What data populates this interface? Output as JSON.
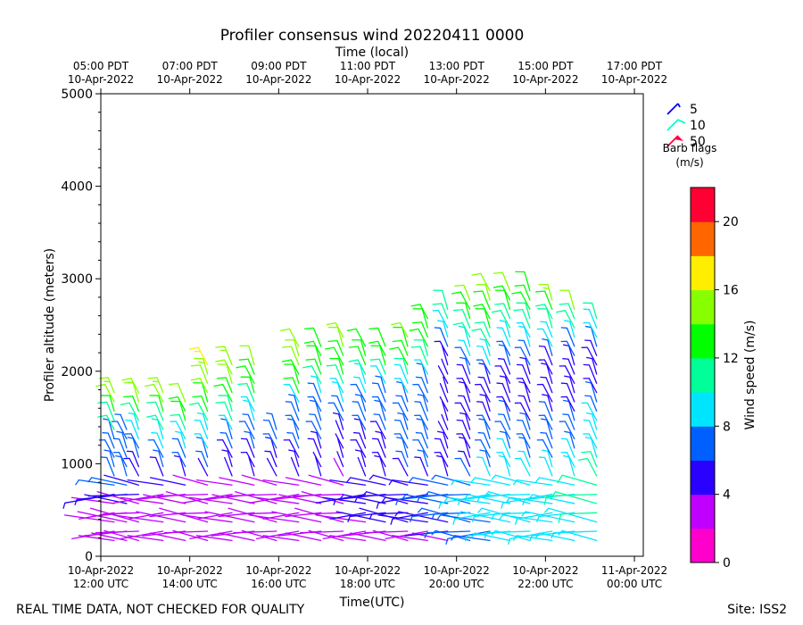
{
  "chart_data": {
    "type": "wind-barb-profile",
    "title": "Profiler consensus wind 20220411 0000",
    "top_axis_label": "Time (local)",
    "xlabel": "Time(UTC)",
    "ylabel": "Profiler altitude (meters)",
    "ylim": [
      0,
      5000
    ],
    "y_ticks": [
      0,
      1000,
      2000,
      3000,
      4000,
      5000
    ],
    "xlim_hours": [
      0,
      12.2
    ],
    "bottom_ticks": [
      {
        "hour": 0,
        "line1": "10-Apr-2022",
        "line2": "12:00 UTC"
      },
      {
        "hour": 2,
        "line1": "10-Apr-2022",
        "line2": "14:00 UTC"
      },
      {
        "hour": 4,
        "line1": "10-Apr-2022",
        "line2": "16:00 UTC"
      },
      {
        "hour": 6,
        "line1": "10-Apr-2022",
        "line2": "18:00 UTC"
      },
      {
        "hour": 8,
        "line1": "10-Apr-2022",
        "line2": "20:00 UTC"
      },
      {
        "hour": 10,
        "line1": "10-Apr-2022",
        "line2": "22:00 UTC"
      },
      {
        "hour": 12,
        "line1": "11-Apr-2022",
        "line2": "00:00 UTC"
      }
    ],
    "top_ticks": [
      {
        "hour": 0,
        "line1": "05:00 PDT",
        "line2": "10-Apr-2022"
      },
      {
        "hour": 2,
        "line1": "07:00 PDT",
        "line2": "10-Apr-2022"
      },
      {
        "hour": 4,
        "line1": "09:00 PDT",
        "line2": "10-Apr-2022"
      },
      {
        "hour": 6,
        "line1": "11:00 PDT",
        "line2": "10-Apr-2022"
      },
      {
        "hour": 8,
        "line1": "13:00 PDT",
        "line2": "10-Apr-2022"
      },
      {
        "hour": 10,
        "line1": "15:00 PDT",
        "line2": "10-Apr-2022"
      },
      {
        "hour": 12,
        "line1": "17:00 PDT",
        "line2": "10-Apr-2022"
      }
    ],
    "legend": {
      "entries": [
        {
          "label": "5",
          "color": "#0000ff"
        },
        {
          "label": "10",
          "color": "#00ffcc"
        },
        {
          "label": "50",
          "color": "#ff0040"
        }
      ],
      "title": "Barb flags",
      "units": "(m/s)"
    },
    "colorbar": {
      "label": "Wind speed (m/s)",
      "range": [
        0,
        22
      ],
      "ticks": [
        0,
        4,
        8,
        12,
        16,
        20
      ],
      "bands": [
        "#ff00cc",
        "#c000ff",
        "#2a00ff",
        "#0060ff",
        "#00e5ff",
        "#00ff99",
        "#00ff00",
        "#88ff00",
        "#ffee00",
        "#ff6600",
        "#ff0033"
      ]
    },
    "columns": [
      {
        "hour": 0.3,
        "top": 1850,
        "profile": [
          [
            0,
            3
          ],
          [
            450,
            2
          ],
          [
            700,
            6
          ],
          [
            1200,
            6
          ],
          [
            1350,
            10
          ],
          [
            1500,
            12
          ],
          [
            1700,
            15
          ],
          [
            1850,
            17
          ]
        ]
      },
      {
        "hour": 0.58,
        "top": 1400,
        "profile": [
          [
            0,
            3
          ],
          [
            450,
            3
          ],
          [
            700,
            6
          ],
          [
            1000,
            7
          ],
          [
            1400,
            8
          ]
        ]
      },
      {
        "hour": 0.85,
        "top": 1800,
        "profile": [
          [
            0,
            3
          ],
          [
            450,
            3
          ],
          [
            650,
            4
          ],
          [
            1000,
            6
          ],
          [
            1300,
            9
          ],
          [
            1600,
            13
          ],
          [
            1800,
            16
          ]
        ]
      },
      {
        "hour": 1.4,
        "top": 1850,
        "profile": [
          [
            0,
            2
          ],
          [
            500,
            3
          ],
          [
            700,
            4
          ],
          [
            1100,
            8
          ],
          [
            1400,
            11
          ],
          [
            1650,
            14
          ],
          [
            1850,
            17
          ]
        ]
      },
      {
        "hour": 1.9,
        "top": 1750,
        "profile": [
          [
            0,
            3
          ],
          [
            500,
            3
          ],
          [
            750,
            4
          ],
          [
            1000,
            7
          ],
          [
            1300,
            10
          ],
          [
            1550,
            13
          ],
          [
            1750,
            15
          ]
        ]
      },
      {
        "hour": 2.4,
        "top": 2100,
        "profile": [
          [
            0,
            2
          ],
          [
            500,
            2
          ],
          [
            800,
            4
          ],
          [
            1100,
            8
          ],
          [
            1350,
            9
          ],
          [
            1600,
            13
          ],
          [
            1900,
            15
          ],
          [
            2100,
            17
          ]
        ]
      },
      {
        "hour": 2.95,
        "top": 2150,
        "profile": [
          [
            0,
            2
          ],
          [
            500,
            2
          ],
          [
            800,
            4
          ],
          [
            1100,
            6
          ],
          [
            1400,
            9
          ],
          [
            1650,
            13
          ],
          [
            2000,
            15
          ],
          [
            2150,
            16
          ]
        ]
      },
      {
        "hour": 3.45,
        "top": 2150,
        "profile": [
          [
            0,
            2
          ],
          [
            500,
            2
          ],
          [
            800,
            4
          ],
          [
            1100,
            6
          ],
          [
            1400,
            7
          ],
          [
            1700,
            12
          ],
          [
            2150,
            15
          ]
        ]
      },
      {
        "hour": 3.95,
        "top": 1400,
        "profile": [
          [
            0,
            2
          ],
          [
            500,
            2
          ],
          [
            800,
            4
          ],
          [
            1100,
            6
          ],
          [
            1400,
            7
          ]
        ]
      },
      {
        "hour": 4.45,
        "top": 2300,
        "profile": [
          [
            0,
            2
          ],
          [
            500,
            2
          ],
          [
            800,
            4
          ],
          [
            1100,
            6
          ],
          [
            1600,
            7
          ],
          [
            1800,
            13
          ],
          [
            2300,
            15
          ]
        ]
      },
      {
        "hour": 4.95,
        "top": 2300,
        "profile": [
          [
            0,
            2
          ],
          [
            500,
            2
          ],
          [
            800,
            4
          ],
          [
            1200,
            6
          ],
          [
            1600,
            6
          ],
          [
            1900,
            12
          ],
          [
            2300,
            14
          ]
        ]
      },
      {
        "hour": 5.45,
        "top": 2400,
        "profile": [
          [
            0,
            2
          ],
          [
            500,
            2
          ],
          [
            900,
            4
          ],
          [
            1300,
            5
          ],
          [
            1700,
            9
          ],
          [
            2000,
            13
          ],
          [
            2400,
            15
          ]
        ]
      },
      {
        "hour": 5.95,
        "top": 2350,
        "profile": [
          [
            0,
            2
          ],
          [
            450,
            4
          ],
          [
            900,
            5
          ],
          [
            1300,
            6
          ],
          [
            1700,
            7
          ],
          [
            2000,
            12
          ],
          [
            2350,
            14
          ]
        ]
      },
      {
        "hour": 6.4,
        "top": 2350,
        "profile": [
          [
            0,
            2
          ],
          [
            450,
            5
          ],
          [
            900,
            5
          ],
          [
            1300,
            6
          ],
          [
            1800,
            6
          ],
          [
            2000,
            12
          ],
          [
            2350,
            14
          ]
        ]
      },
      {
        "hour": 6.9,
        "top": 2450,
        "profile": [
          [
            0,
            2
          ],
          [
            450,
            5
          ],
          [
            900,
            6
          ],
          [
            1300,
            7
          ],
          [
            1700,
            7
          ],
          [
            2050,
            12
          ],
          [
            2450,
            15
          ]
        ]
      },
      {
        "hour": 7.35,
        "top": 2600,
        "profile": [
          [
            0,
            2
          ],
          [
            450,
            5
          ],
          [
            900,
            6
          ],
          [
            1300,
            7
          ],
          [
            1800,
            7
          ],
          [
            2050,
            10
          ],
          [
            2300,
            13
          ],
          [
            2600,
            13
          ]
        ]
      },
      {
        "hour": 7.8,
        "top": 2700,
        "profile": [
          [
            0,
            2
          ],
          [
            400,
            6
          ],
          [
            800,
            6
          ],
          [
            1200,
            5
          ],
          [
            1700,
            4
          ],
          [
            2100,
            5
          ],
          [
            2400,
            9
          ],
          [
            2700,
            12
          ]
        ]
      },
      {
        "hour": 8.3,
        "top": 2850,
        "profile": [
          [
            0,
            6
          ],
          [
            400,
            6
          ],
          [
            900,
            6
          ],
          [
            1400,
            5
          ],
          [
            1800,
            5
          ],
          [
            2150,
            8
          ],
          [
            2500,
            12
          ],
          [
            2850,
            15
          ]
        ]
      },
      {
        "hour": 8.75,
        "top": 2900,
        "profile": [
          [
            0,
            7
          ],
          [
            400,
            8
          ],
          [
            900,
            8
          ],
          [
            1400,
            6
          ],
          [
            1800,
            5
          ],
          [
            2200,
            10
          ],
          [
            2500,
            13
          ],
          [
            2900,
            15
          ]
        ]
      },
      {
        "hour": 9.2,
        "top": 2900,
        "profile": [
          [
            0,
            8
          ],
          [
            400,
            9
          ],
          [
            1000,
            9
          ],
          [
            1500,
            6
          ],
          [
            1900,
            5
          ],
          [
            2300,
            9
          ],
          [
            2600,
            12
          ],
          [
            2900,
            15
          ]
        ]
      },
      {
        "hour": 9.65,
        "top": 2900,
        "profile": [
          [
            0,
            8
          ],
          [
            400,
            9
          ],
          [
            1000,
            8
          ],
          [
            1400,
            6
          ],
          [
            1900,
            5
          ],
          [
            2300,
            9
          ],
          [
            2650,
            12
          ],
          [
            2900,
            13
          ]
        ]
      },
      {
        "hour": 10.15,
        "top": 2800,
        "profile": [
          [
            0,
            8
          ],
          [
            400,
            9
          ],
          [
            1000,
            8
          ],
          [
            1500,
            6
          ],
          [
            2000,
            5
          ],
          [
            2300,
            9
          ],
          [
            2600,
            12
          ],
          [
            2800,
            16
          ]
        ]
      },
      {
        "hour": 10.65,
        "top": 2700,
        "profile": [
          [
            0,
            9
          ],
          [
            400,
            10
          ],
          [
            1000,
            9
          ],
          [
            1500,
            6
          ],
          [
            2000,
            5
          ],
          [
            2300,
            8
          ],
          [
            2600,
            12
          ],
          [
            2700,
            16
          ]
        ]
      },
      {
        "hour": 11.15,
        "top": 2650,
        "profile": [
          [
            0,
            9
          ],
          [
            400,
            10
          ],
          [
            1000,
            10
          ],
          [
            1400,
            9
          ],
          [
            1700,
            6
          ],
          [
            2100,
            5
          ],
          [
            2400,
            9
          ],
          [
            2650,
            12
          ]
        ]
      }
    ]
  },
  "footer": {
    "left": "REAL TIME DATA, NOT CHECKED FOR QUALITY",
    "right": "Site: ISS2"
  }
}
